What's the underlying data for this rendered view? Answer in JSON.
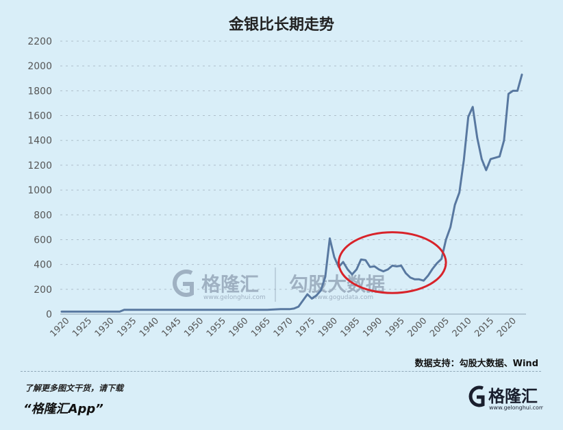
{
  "chart_data": {
    "type": "line",
    "title": "金银比长期走势",
    "xlabel": "",
    "ylabel": "",
    "ylim": [
      0,
      2200
    ],
    "xlim": [
      1920,
      2023
    ],
    "yticks": [
      0,
      200,
      400,
      600,
      800,
      1000,
      1200,
      1400,
      1600,
      1800,
      2000,
      2200
    ],
    "xticks": [
      1920,
      1925,
      1930,
      1935,
      1940,
      1945,
      1950,
      1955,
      1960,
      1965,
      1970,
      1975,
      1980,
      1985,
      1990,
      1995,
      2000,
      2005,
      2010,
      2015,
      2020
    ],
    "grid": true,
    "series": [
      {
        "color": "#5878a0",
        "x": [
          1920,
          1933,
          1934,
          1950,
          1966,
          1969,
          1971,
          1972,
          1973,
          1974,
          1975,
          1976,
          1977,
          1978,
          1979,
          1980,
          1981,
          1982,
          1983,
          1984,
          1985,
          1986,
          1987,
          1988,
          1989,
          1990,
          1991,
          1992,
          1993,
          1994,
          1995,
          1996,
          1997,
          1998,
          1999,
          2000,
          2001,
          2002,
          2003,
          2004,
          2005,
          2006,
          2007,
          2008,
          2009,
          2010,
          2011,
          2012,
          2013,
          2014,
          2015,
          2016,
          2017,
          2018,
          2019,
          2020,
          2021,
          2022,
          2023
        ],
        "y": [
          20,
          20,
          35,
          35,
          35,
          40,
          40,
          45,
          60,
          110,
          160,
          125,
          150,
          190,
          300,
          610,
          460,
          380,
          420,
          360,
          320,
          360,
          440,
          435,
          380,
          385,
          360,
          345,
          360,
          390,
          385,
          390,
          330,
          295,
          280,
          280,
          270,
          310,
          365,
          410,
          445,
          600,
          700,
          880,
          980,
          1240,
          1590,
          1670,
          1420,
          1250,
          1160,
          1250,
          1260,
          1270,
          1400,
          1775,
          1800,
          1800,
          1930
        ]
      }
    ],
    "annotations": [
      {
        "type": "ellipse",
        "color": "#d8232a",
        "x_range": [
          1982,
          2006
        ],
        "y_range": [
          170,
          660
        ]
      }
    ]
  },
  "watermark": {
    "brand_cn": "格隆汇",
    "brand_url": "www.gelonghui.com",
    "partner_cn": "勾股大数据",
    "partner_url": "www.gogudata.com"
  },
  "source_text": "数据支持：勾股大数据、Wind",
  "promo": {
    "line": "了解更多图文干货，请下载",
    "app": "“格隆汇App”"
  },
  "logo": {
    "text": "格隆汇",
    "url": "www.gelonghui.com",
    "color": "#1a1f2e"
  }
}
